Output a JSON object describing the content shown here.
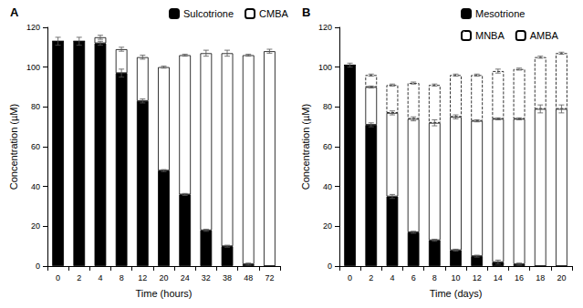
{
  "chart_data": [
    {
      "type": "bar",
      "title": "A",
      "x_label": "Time (hours)",
      "y_label": "Concentration (µM)",
      "categories": [
        "0",
        "2",
        "4",
        "8",
        "12",
        "20",
        "24",
        "32",
        "38",
        "48",
        "72"
      ],
      "stacked": true,
      "grid": false,
      "legend": "top",
      "ylim": [
        0,
        120
      ],
      "yticks": [
        0,
        20,
        40,
        60,
        80,
        100,
        120
      ],
      "series": [
        {
          "name": "Sulcotrione",
          "color": "#000000",
          "line_style": "solid",
          "values": [
            113,
            113,
            112,
            97,
            83,
            48,
            36,
            18,
            10,
            1,
            0
          ],
          "errors": [
            2,
            2,
            1,
            2,
            1,
            0.5,
            0.5,
            0.5,
            0.5,
            0.5,
            0
          ]
        },
        {
          "name": "CMBA",
          "color": "#ffffff",
          "line_style": "solid",
          "values": [
            0,
            0,
            3,
            12,
            22,
            52,
            70,
            89,
            97,
            105,
            108
          ],
          "errors": [
            0,
            0,
            1,
            1,
            1,
            0.5,
            0.5,
            1.5,
            1.5,
            0.5,
            1
          ]
        }
      ]
    },
    {
      "type": "bar",
      "title": "B",
      "x_label": "Time (days)",
      "y_label": "Concentration (µM)",
      "categories": [
        "0",
        "2",
        "4",
        "6",
        "8",
        "10",
        "12",
        "14",
        "16",
        "18",
        "20"
      ],
      "stacked": true,
      "grid": false,
      "legend": "top",
      "ylim": [
        0,
        120
      ],
      "yticks": [
        0,
        20,
        40,
        60,
        80,
        100,
        120
      ],
      "series": [
        {
          "name": "Mesotrione",
          "color": "#000000",
          "line_style": "solid",
          "values": [
            101,
            71,
            35,
            17,
            13,
            8,
            5,
            2,
            1,
            0,
            0
          ],
          "errors": [
            1,
            1,
            1,
            0.5,
            0.5,
            0.5,
            0.5,
            1,
            0.5,
            0,
            0
          ]
        },
        {
          "name": "MNBA",
          "color": "#ffffff",
          "line_style": "solid",
          "values": [
            0,
            19,
            42,
            57,
            59,
            67,
            68,
            72,
            73,
            79,
            79
          ],
          "errors": [
            0,
            0.5,
            1,
            1,
            1.5,
            1,
            0.5,
            0.5,
            0.5,
            2,
            2
          ]
        },
        {
          "name": "AMBA",
          "color": "#ffffff",
          "line_style": "dashed",
          "values": [
            0,
            6,
            14,
            18,
            19,
            21,
            23,
            24,
            25,
            26,
            28
          ],
          "errors": [
            0,
            0.5,
            0.5,
            0.5,
            0.5,
            0.5,
            0.5,
            1,
            0.5,
            0.5,
            0.5
          ]
        }
      ]
    }
  ]
}
